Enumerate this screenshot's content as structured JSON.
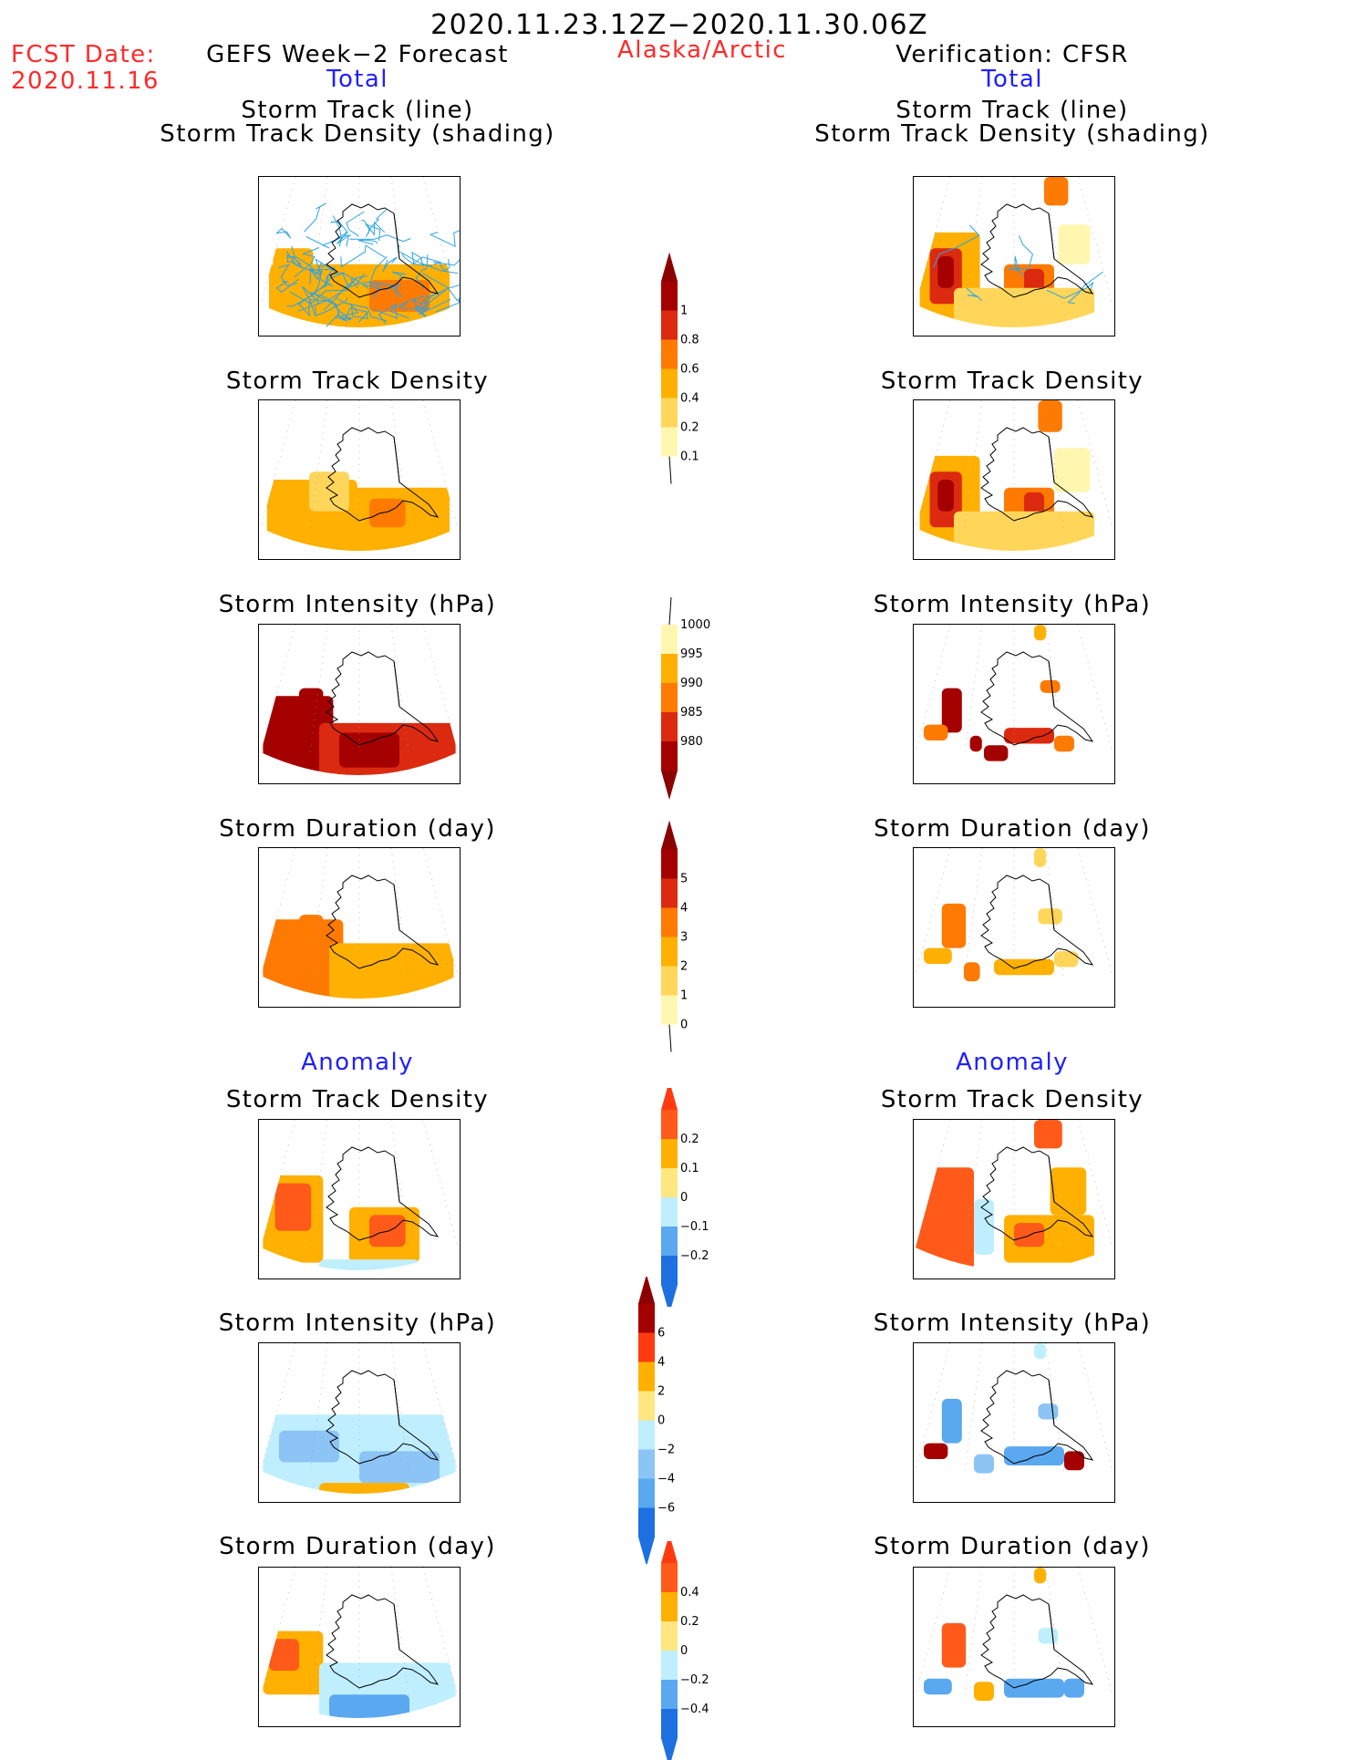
{
  "header": {
    "period": "2020.11.23.12Z−2020.11.30.06Z",
    "fcst_label": "FCST Date:",
    "fcst_date": "2020.11.16",
    "left_title": "GEFS Week−2 Forecast",
    "region": "Alaska/Arctic",
    "right_title": "Verification: CFSR",
    "section_total": "Total",
    "section_anomaly": "Anomaly"
  },
  "panel_titles": {
    "track_line": "Storm Track (line)",
    "track_shading": "Storm Track Density (shading)",
    "density": "Storm Track Density",
    "intensity": "Storm Intensity (hPa)",
    "duration": "Storm Duration (day)"
  },
  "chart_data": [
    {
      "type": "heatmap",
      "name": "forecast-total-track",
      "region": "Alaska/Arctic",
      "colorbar": "density_total",
      "overlay": "storm tracks (blue lines)",
      "cells": [
        {
          "x": 0.07,
          "y": 0.45,
          "w": 0.2,
          "h": 0.35,
          "v": 0.4
        },
        {
          "x": 0.05,
          "y": 0.55,
          "w": 0.9,
          "h": 0.42,
          "v": 0.4
        },
        {
          "x": 0.55,
          "y": 0.65,
          "w": 0.3,
          "h": 0.2,
          "v": 0.6
        }
      ]
    },
    {
      "type": "heatmap",
      "name": "verification-total-track",
      "region": "Alaska/Arctic",
      "colorbar": "density_total",
      "overlay": "storm tracks (blue lines)",
      "cells": [
        {
          "x": 0.03,
          "y": 0.35,
          "w": 0.3,
          "h": 0.55,
          "v": 0.4
        },
        {
          "x": 0.08,
          "y": 0.45,
          "w": 0.16,
          "h": 0.35,
          "v": 0.8
        },
        {
          "x": 0.12,
          "y": 0.5,
          "w": 0.08,
          "h": 0.2,
          "v": 1.0
        },
        {
          "x": 0.45,
          "y": 0.55,
          "w": 0.25,
          "h": 0.3,
          "v": 0.6
        },
        {
          "x": 0.55,
          "y": 0.58,
          "w": 0.1,
          "h": 0.2,
          "v": 0.8
        },
        {
          "x": 0.2,
          "y": 0.7,
          "w": 0.7,
          "h": 0.25,
          "v": 0.2
        },
        {
          "x": 0.65,
          "y": 0.0,
          "w": 0.12,
          "h": 0.18,
          "v": 0.6
        },
        {
          "x": 0.72,
          "y": 0.3,
          "w": 0.16,
          "h": 0.25,
          "v": 0.1
        }
      ]
    },
    {
      "type": "heatmap",
      "name": "forecast-total-density",
      "region": "Alaska/Arctic",
      "colorbar": "density_total",
      "cells": [
        {
          "x": 0.04,
          "y": 0.5,
          "w": 0.45,
          "h": 0.45,
          "v": 0.4
        },
        {
          "x": 0.45,
          "y": 0.55,
          "w": 0.5,
          "h": 0.42,
          "v": 0.4
        },
        {
          "x": 0.55,
          "y": 0.62,
          "w": 0.18,
          "h": 0.18,
          "v": 0.6
        },
        {
          "x": 0.25,
          "y": 0.45,
          "w": 0.2,
          "h": 0.25,
          "v": 0.2
        }
      ]
    },
    {
      "type": "heatmap",
      "name": "verification-total-density",
      "region": "Alaska/Arctic",
      "colorbar": "density_total",
      "cells": [
        {
          "x": 0.03,
          "y": 0.35,
          "w": 0.3,
          "h": 0.55,
          "v": 0.4
        },
        {
          "x": 0.08,
          "y": 0.45,
          "w": 0.16,
          "h": 0.35,
          "v": 0.8
        },
        {
          "x": 0.12,
          "y": 0.5,
          "w": 0.08,
          "h": 0.2,
          "v": 1.0
        },
        {
          "x": 0.45,
          "y": 0.55,
          "w": 0.25,
          "h": 0.3,
          "v": 0.6
        },
        {
          "x": 0.55,
          "y": 0.58,
          "w": 0.1,
          "h": 0.2,
          "v": 0.8
        },
        {
          "x": 0.2,
          "y": 0.7,
          "w": 0.7,
          "h": 0.25,
          "v": 0.2
        },
        {
          "x": 0.62,
          "y": 0.0,
          "w": 0.12,
          "h": 0.2,
          "v": 0.6
        },
        {
          "x": 0.7,
          "y": 0.3,
          "w": 0.18,
          "h": 0.28,
          "v": 0.1
        }
      ]
    },
    {
      "type": "heatmap",
      "name": "forecast-total-intensity",
      "region": "Alaska/Arctic",
      "colorbar": "intensity_total",
      "cells": [
        {
          "x": 0.02,
          "y": 0.45,
          "w": 0.35,
          "h": 0.52,
          "v": 980
        },
        {
          "x": 0.3,
          "y": 0.62,
          "w": 0.68,
          "h": 0.35,
          "v": 985
        },
        {
          "x": 0.2,
          "y": 0.4,
          "w": 0.12,
          "h": 0.15,
          "v": 980
        },
        {
          "x": 0.4,
          "y": 0.68,
          "w": 0.3,
          "h": 0.22,
          "v": 980
        }
      ]
    },
    {
      "type": "heatmap",
      "name": "verification-total-intensity",
      "region": "Alaska/Arctic",
      "colorbar": "intensity_total",
      "cells": [
        {
          "x": 0.14,
          "y": 0.4,
          "w": 0.1,
          "h": 0.28,
          "v": 980
        },
        {
          "x": 0.05,
          "y": 0.63,
          "w": 0.12,
          "h": 0.1,
          "v": 990
        },
        {
          "x": 0.28,
          "y": 0.7,
          "w": 0.06,
          "h": 0.1,
          "v": 980
        },
        {
          "x": 0.35,
          "y": 0.76,
          "w": 0.12,
          "h": 0.1,
          "v": 980
        },
        {
          "x": 0.45,
          "y": 0.65,
          "w": 0.25,
          "h": 0.1,
          "v": 985
        },
        {
          "x": 0.7,
          "y": 0.7,
          "w": 0.1,
          "h": 0.1,
          "v": 990
        },
        {
          "x": 0.63,
          "y": 0.35,
          "w": 0.1,
          "h": 0.08,
          "v": 990
        },
        {
          "x": 0.6,
          "y": 0.0,
          "w": 0.06,
          "h": 0.1,
          "v": 995
        }
      ]
    },
    {
      "type": "heatmap",
      "name": "forecast-total-duration",
      "region": "Alaska/Arctic",
      "colorbar": "duration_total",
      "cells": [
        {
          "x": 0.02,
          "y": 0.45,
          "w": 0.4,
          "h": 0.52,
          "v": 3
        },
        {
          "x": 0.35,
          "y": 0.6,
          "w": 0.62,
          "h": 0.37,
          "v": 2
        },
        {
          "x": 0.2,
          "y": 0.42,
          "w": 0.12,
          "h": 0.15,
          "v": 3
        }
      ]
    },
    {
      "type": "heatmap",
      "name": "verification-total-duration",
      "region": "Alaska/Arctic",
      "colorbar": "duration_total",
      "cells": [
        {
          "x": 0.14,
          "y": 0.35,
          "w": 0.12,
          "h": 0.28,
          "v": 3
        },
        {
          "x": 0.05,
          "y": 0.63,
          "w": 0.14,
          "h": 0.1,
          "v": 2
        },
        {
          "x": 0.25,
          "y": 0.72,
          "w": 0.08,
          "h": 0.12,
          "v": 3
        },
        {
          "x": 0.4,
          "y": 0.7,
          "w": 0.3,
          "h": 0.1,
          "v": 2
        },
        {
          "x": 0.7,
          "y": 0.65,
          "w": 0.12,
          "h": 0.1,
          "v": 1
        },
        {
          "x": 0.62,
          "y": 0.38,
          "w": 0.12,
          "h": 0.1,
          "v": 1
        },
        {
          "x": 0.6,
          "y": 0.0,
          "w": 0.06,
          "h": 0.12,
          "v": 1
        }
      ]
    },
    {
      "type": "heatmap",
      "name": "forecast-anomaly-density",
      "region": "Alaska/Arctic",
      "colorbar": "density_anomaly",
      "cells": [
        {
          "x": 0.02,
          "y": 0.35,
          "w": 0.3,
          "h": 0.55,
          "v": 0.1
        },
        {
          "x": 0.08,
          "y": 0.4,
          "w": 0.18,
          "h": 0.3,
          "v": 0.2
        },
        {
          "x": 0.45,
          "y": 0.55,
          "w": 0.35,
          "h": 0.35,
          "v": 0.1
        },
        {
          "x": 0.55,
          "y": 0.6,
          "w": 0.18,
          "h": 0.2,
          "v": 0.2
        },
        {
          "x": 0.3,
          "y": 0.88,
          "w": 0.5,
          "h": 0.1,
          "v": -0.1
        }
      ]
    },
    {
      "type": "heatmap",
      "name": "verification-anomaly-density",
      "region": "Alaska/Arctic",
      "colorbar": "density_anomaly",
      "cells": [
        {
          "x": 0.0,
          "y": 0.3,
          "w": 0.3,
          "h": 0.65,
          "v": 0.2
        },
        {
          "x": 0.3,
          "y": 0.5,
          "w": 0.1,
          "h": 0.35,
          "v": -0.1
        },
        {
          "x": 0.45,
          "y": 0.6,
          "w": 0.45,
          "h": 0.3,
          "v": 0.1
        },
        {
          "x": 0.5,
          "y": 0.65,
          "w": 0.15,
          "h": 0.15,
          "v": 0.2
        },
        {
          "x": 0.6,
          "y": 0.0,
          "w": 0.14,
          "h": 0.18,
          "v": 0.2
        },
        {
          "x": 0.68,
          "y": 0.3,
          "w": 0.18,
          "h": 0.3,
          "v": 0.1
        },
        {
          "x": 0.0,
          "y": 0.88,
          "w": 0.15,
          "h": 0.1,
          "v": -0.2
        }
      ]
    },
    {
      "type": "heatmap",
      "name": "forecast-anomaly-intensity",
      "region": "Alaska/Arctic",
      "colorbar": "intensity_anomaly",
      "cells": [
        {
          "x": 0.02,
          "y": 0.45,
          "w": 0.96,
          "h": 0.52,
          "v": -2
        },
        {
          "x": 0.1,
          "y": 0.55,
          "w": 0.3,
          "h": 0.2,
          "v": -4
        },
        {
          "x": 0.5,
          "y": 0.68,
          "w": 0.4,
          "h": 0.2,
          "v": -4
        },
        {
          "x": 0.3,
          "y": 0.88,
          "w": 0.45,
          "h": 0.08,
          "v": 2
        }
      ]
    },
    {
      "type": "heatmap",
      "name": "verification-anomaly-intensity",
      "region": "Alaska/Arctic",
      "colorbar": "intensity_anomaly",
      "cells": [
        {
          "x": 0.14,
          "y": 0.35,
          "w": 0.1,
          "h": 0.28,
          "v": -6
        },
        {
          "x": 0.05,
          "y": 0.63,
          "w": 0.12,
          "h": 0.1,
          "v": 6
        },
        {
          "x": 0.3,
          "y": 0.7,
          "w": 0.1,
          "h": 0.12,
          "v": -4
        },
        {
          "x": 0.45,
          "y": 0.65,
          "w": 0.3,
          "h": 0.12,
          "v": -6
        },
        {
          "x": 0.75,
          "y": 0.68,
          "w": 0.1,
          "h": 0.12,
          "v": 6
        },
        {
          "x": 0.62,
          "y": 0.38,
          "w": 0.1,
          "h": 0.1,
          "v": -4
        },
        {
          "x": 0.6,
          "y": 0.0,
          "w": 0.06,
          "h": 0.1,
          "v": -2
        }
      ]
    },
    {
      "type": "heatmap",
      "name": "forecast-anomaly-duration",
      "region": "Alaska/Arctic",
      "colorbar": "duration_anomaly",
      "cells": [
        {
          "x": 0.02,
          "y": 0.4,
          "w": 0.3,
          "h": 0.4,
          "v": 0.2
        },
        {
          "x": 0.05,
          "y": 0.45,
          "w": 0.15,
          "h": 0.2,
          "v": 0.4
        },
        {
          "x": 0.3,
          "y": 0.6,
          "w": 0.68,
          "h": 0.37,
          "v": -0.2
        },
        {
          "x": 0.35,
          "y": 0.8,
          "w": 0.4,
          "h": 0.15,
          "v": -0.4
        }
      ]
    },
    {
      "type": "heatmap",
      "name": "verification-anomaly-duration",
      "region": "Alaska/Arctic",
      "colorbar": "duration_anomaly",
      "cells": [
        {
          "x": 0.14,
          "y": 0.35,
          "w": 0.12,
          "h": 0.28,
          "v": 0.4
        },
        {
          "x": 0.05,
          "y": 0.7,
          "w": 0.14,
          "h": 0.1,
          "v": -0.4
        },
        {
          "x": 0.3,
          "y": 0.72,
          "w": 0.1,
          "h": 0.12,
          "v": 0.2
        },
        {
          "x": 0.45,
          "y": 0.7,
          "w": 0.3,
          "h": 0.12,
          "v": -0.4
        },
        {
          "x": 0.75,
          "y": 0.7,
          "w": 0.1,
          "h": 0.12,
          "v": -0.4
        },
        {
          "x": 0.62,
          "y": 0.38,
          "w": 0.1,
          "h": 0.1,
          "v": -0.2
        },
        {
          "x": 0.6,
          "y": 0.0,
          "w": 0.06,
          "h": 0.1,
          "v": 0.2
        }
      ]
    }
  ],
  "colorbars": {
    "density_total": {
      "labels": [
        "1",
        "0.8",
        "0.6",
        "0.4",
        "0.2",
        "0.1"
      ],
      "colors": [
        "#a50000",
        "#db2a10",
        "#ff7a00",
        "#ffb000",
        "#ffd65a",
        "#fff7b0"
      ],
      "top_arrow": "#8b0000",
      "bottom": "open"
    },
    "intensity_total": {
      "labels": [
        "1000",
        "995",
        "990",
        "985",
        "980"
      ],
      "colors": [
        "#fff7b0",
        "#ffb000",
        "#ff7a00",
        "#db2a10",
        "#a50000"
      ],
      "top": "open",
      "bottom_arrow": "#8b0000"
    },
    "duration_total": {
      "labels": [
        "5",
        "4",
        "3",
        "2",
        "1",
        "0"
      ],
      "colors": [
        "#a50000",
        "#db2a10",
        "#ff7a00",
        "#ffb000",
        "#ffd65a",
        "#fff7b0"
      ],
      "top_arrow": "#8b0000",
      "bottom": "open"
    },
    "density_anomaly": {
      "labels": [
        "0.2",
        "0.1",
        "0",
        "−0.1",
        "−0.2"
      ],
      "colors": [
        "#ff5a1a",
        "#ffb000",
        "#ffe680",
        "#bfefff",
        "#5aa8f0",
        "#1e6fe0"
      ],
      "top_arrow": "#ff3a10",
      "bottom_arrow": "#1e6fe0"
    },
    "intensity_anomaly": {
      "labels": [
        "6",
        "4",
        "2",
        "0",
        "−2",
        "−4",
        "−6"
      ],
      "colors": [
        "#a50000",
        "#ff3a10",
        "#ffb000",
        "#ffe680",
        "#bfefff",
        "#8cc4f5",
        "#5aa8f0",
        "#1e6fe0"
      ],
      "top_arrow": "#8b0000",
      "bottom_arrow": "#1e6fe0"
    },
    "duration_anomaly": {
      "labels": [
        "0.4",
        "0.2",
        "0",
        "−0.2",
        "−0.4"
      ],
      "colors": [
        "#ff5a1a",
        "#ffb000",
        "#ffe680",
        "#bfefff",
        "#5aa8f0",
        "#1e6fe0"
      ],
      "top_arrow": "#ff3a10",
      "bottom_arrow": "#1e6fe0"
    }
  },
  "colors": {
    "land_outline": "#000000",
    "track_line": "#2ea3e6",
    "title_red": "#ff2a2a",
    "title_blue": "#1f1fff"
  }
}
